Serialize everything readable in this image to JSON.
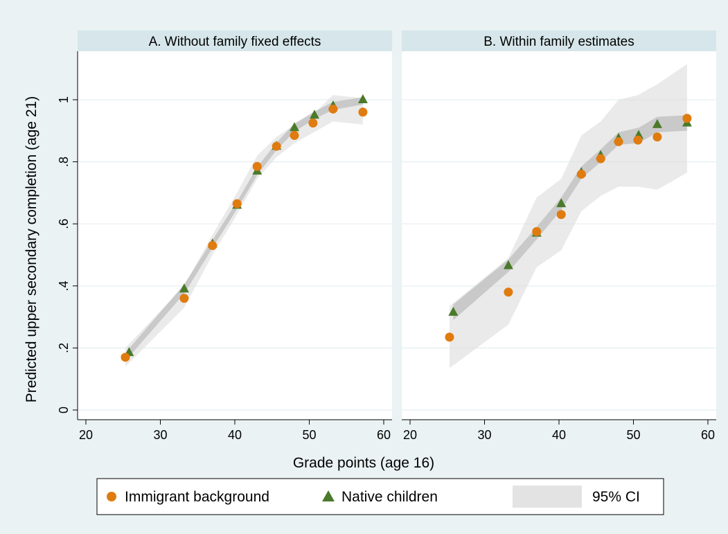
{
  "y_axis_label": "Predicted upper secondary completion (age 21)",
  "x_axis_label": "Grade points (age 16)",
  "legend": {
    "items": [
      {
        "label": "Immigrant background",
        "color": "#e07b0f",
        "marker": "circle"
      },
      {
        "label": "Native children",
        "color": "#4a7a2a",
        "marker": "triangle"
      },
      {
        "label": "95% CI",
        "color": "#e3e3e3",
        "marker": "area"
      }
    ],
    "position": "bottom"
  },
  "colors": {
    "background": "#eaf2f3",
    "plot_background": "#ffffff",
    "panel_header": "#d6e6ea",
    "immigrant": "#e07b0f",
    "native": "#4a7a2a",
    "ci_fill": "#dcdcdc",
    "grid": "#e5eef0"
  },
  "chart_data": [
    {
      "type": "scatter",
      "title": "A. Without family fixed effects",
      "xlim": [
        20,
        60
      ],
      "ylim": [
        0,
        1
      ],
      "x_ticks": [
        "20",
        "30",
        "40",
        "50",
        "60"
      ],
      "y_ticks": [
        "0",
        ".2",
        ".4",
        ".6",
        ".8",
        "1"
      ],
      "grid": true,
      "series": [
        {
          "name": "Immigrant background",
          "x": [
            25.3,
            33.2,
            37.0,
            40.3,
            43.0,
            45.6,
            48.0,
            50.5,
            53.2,
            57.2
          ],
          "y": [
            0.17,
            0.36,
            0.53,
            0.665,
            0.785,
            0.85,
            0.885,
            0.925,
            0.97,
            0.96
          ]
        },
        {
          "name": "Native children",
          "x": [
            25.8,
            33.2,
            37.0,
            40.3,
            43.0,
            45.6,
            48.0,
            50.7,
            53.2,
            57.2
          ],
          "y": [
            0.185,
            0.39,
            0.535,
            0.66,
            0.77,
            0.85,
            0.91,
            0.95,
            0.98,
            1.0
          ]
        }
      ],
      "ci_bands": [
        {
          "x": [
            25.3,
            33.2,
            37.0,
            40.3,
            43.0,
            45.6,
            48.0,
            50.6,
            53.2,
            57.2
          ],
          "lower": [
            0.14,
            0.33,
            0.5,
            0.63,
            0.745,
            0.815,
            0.86,
            0.895,
            0.93,
            0.92
          ],
          "upper": [
            0.2,
            0.4,
            0.565,
            0.7,
            0.82,
            0.88,
            0.92,
            0.955,
            1.015,
            1.005
          ]
        },
        {
          "x": [
            25.8,
            33.2,
            37.0,
            40.3,
            43.0,
            45.6,
            48.0,
            50.7,
            53.2,
            57.2
          ],
          "lower": [
            0.172,
            0.375,
            0.522,
            0.648,
            0.757,
            0.838,
            0.897,
            0.938,
            0.967,
            0.985
          ],
          "upper": [
            0.198,
            0.405,
            0.548,
            0.672,
            0.783,
            0.862,
            0.923,
            0.962,
            0.993,
            1.008
          ]
        }
      ]
    },
    {
      "type": "scatter",
      "title": "B. Within family estimates",
      "xlim": [
        20,
        60
      ],
      "ylim": [
        0,
        1
      ],
      "x_ticks": [
        "20",
        "30",
        "40",
        "50",
        "60"
      ],
      "y_ticks": [
        "0",
        ".2",
        ".4",
        ".6",
        ".8",
        "1"
      ],
      "grid": true,
      "series": [
        {
          "name": "Immigrant background",
          "x": [
            25.3,
            33.2,
            37.0,
            40.3,
            43.0,
            45.6,
            48.0,
            50.6,
            53.2,
            57.2
          ],
          "y": [
            0.235,
            0.38,
            0.575,
            0.63,
            0.76,
            0.81,
            0.865,
            0.87,
            0.88,
            0.94
          ]
        },
        {
          "name": "Native children",
          "x": [
            25.8,
            33.2,
            37.0,
            40.3,
            43.0,
            45.6,
            48.0,
            50.7,
            53.2,
            57.2
          ],
          "y": [
            0.315,
            0.465,
            0.57,
            0.665,
            0.765,
            0.82,
            0.875,
            0.885,
            0.92,
            0.925
          ]
        }
      ],
      "ci_bands": [
        {
          "x": [
            25.3,
            33.2,
            37.0,
            40.3,
            43.0,
            45.6,
            48.0,
            50.6,
            53.2,
            57.2
          ],
          "lower": [
            0.135,
            0.275,
            0.46,
            0.515,
            0.64,
            0.69,
            0.72,
            0.72,
            0.71,
            0.765
          ],
          "upper": [
            0.335,
            0.49,
            0.685,
            0.745,
            0.885,
            0.93,
            1.0,
            1.015,
            1.05,
            1.115
          ]
        },
        {
          "x": [
            25.8,
            33.2,
            37.0,
            40.3,
            43.0,
            45.6,
            48.0,
            50.7,
            53.2,
            57.2
          ],
          "lower": [
            0.29,
            0.445,
            0.55,
            0.645,
            0.745,
            0.8,
            0.855,
            0.86,
            0.895,
            0.9
          ],
          "upper": [
            0.34,
            0.485,
            0.59,
            0.685,
            0.785,
            0.84,
            0.895,
            0.91,
            0.945,
            0.95
          ]
        }
      ]
    }
  ]
}
